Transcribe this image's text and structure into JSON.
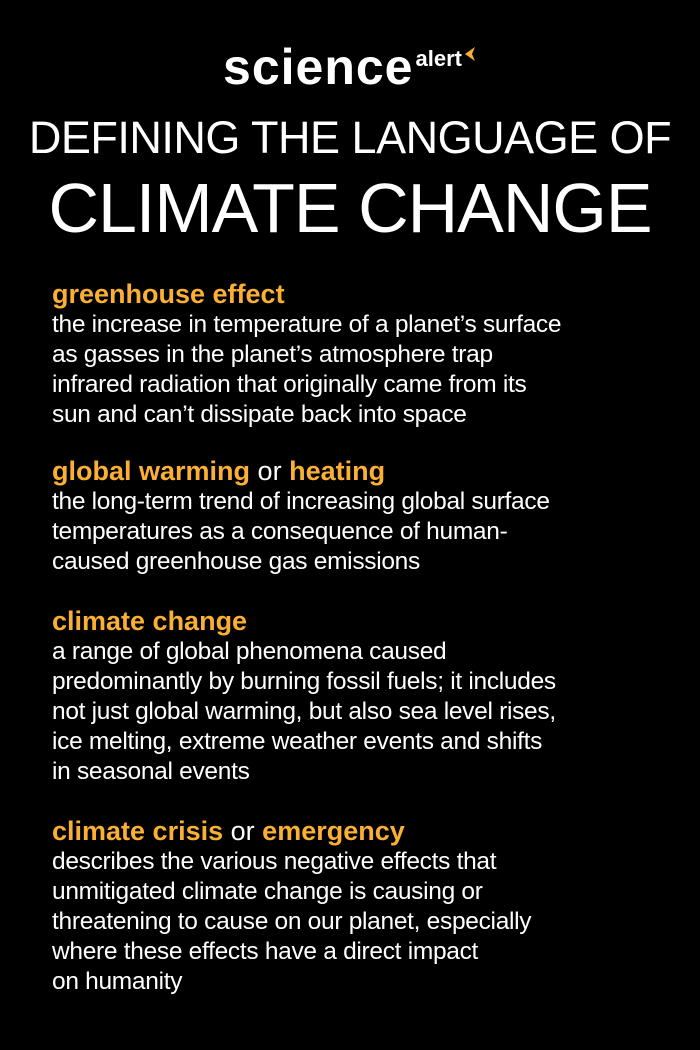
{
  "header": {
    "logo_main": "science",
    "logo_sub": "alert",
    "title_line1": "DEFINING THE LANGUAGE OF",
    "title_line2": "CLIMATE CHANGE"
  },
  "terms": [
    {
      "term": "greenhouse effect",
      "definition": [
        "the increase in temperature of a planet’s surface",
        "as gasses in the planet’s atmosphere trap",
        "infrared radiation that originally came from its",
        "sun and can’t dissipate back into space"
      ]
    },
    {
      "term": "global warming",
      "connector": "or",
      "alt": "heating",
      "definition": [
        "the long-term trend of increasing global surface",
        "temperatures as a consequence of human-",
        "caused greenhouse gas emissions"
      ]
    },
    {
      "term": "climate change",
      "definition": [
        "a range of global phenomena caused",
        "predominantly by burning fossil fuels; it includes",
        "not just global warming, but also sea level rises,",
        "ice melting, extreme weather events and shifts",
        "in seasonal events"
      ]
    },
    {
      "term": "climate crisis",
      "connector": "or",
      "alt": "emergency",
      "definition": [
        "describes the various negative effects that",
        "unmitigated climate change is causing or",
        "threatening to cause on our planet, especially",
        "where these effects have a direct impact",
        "on humanity"
      ]
    }
  ]
}
